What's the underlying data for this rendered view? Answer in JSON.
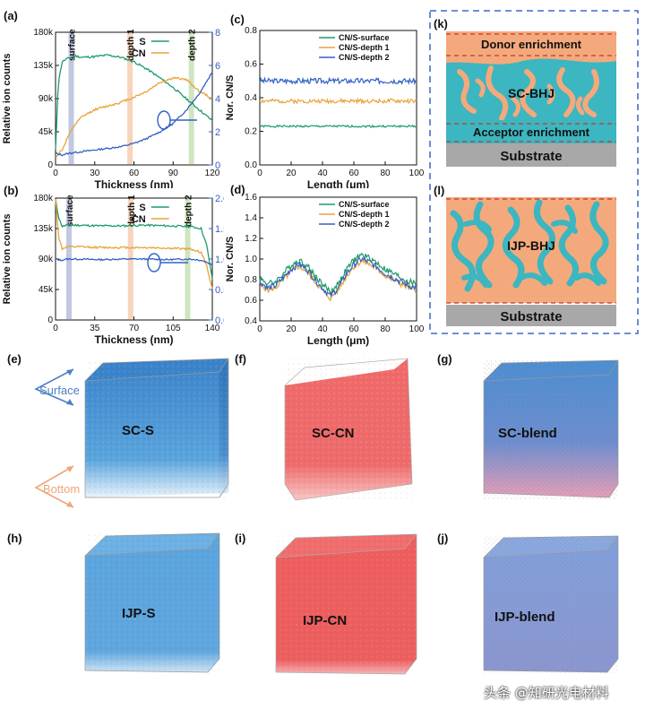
{
  "chart_data": [
    {
      "panel": "(a)",
      "type": "line",
      "xlabel": "Thickness (nm)",
      "ylabel": "Relative ion counts",
      "y2label": "Nor. CN/S",
      "xlim": [
        0,
        120
      ],
      "ylim": [
        0,
        180000
      ],
      "y2lim": [
        0,
        8
      ],
      "xticks": [
        "0",
        "30",
        "60",
        "90",
        "120"
      ],
      "yticks": [
        "0",
        "45k",
        "90k",
        "135k",
        "180k"
      ],
      "y2ticks": [
        "0",
        "2",
        "4",
        "6",
        "8"
      ],
      "legend": [
        "S",
        "CN"
      ],
      "markers": [
        {
          "label": "surface",
          "x": 12,
          "color": "#b6bedd"
        },
        {
          "label": "depth 1",
          "x": 57,
          "color": "#f6cdb2"
        },
        {
          "label": "depth 2",
          "x": 104,
          "color": "#c7e0b4"
        }
      ],
      "series": [
        {
          "name": "S",
          "color": "#1e9a6a",
          "axis": "left",
          "x": [
            0,
            2,
            5,
            10,
            15,
            20,
            30,
            40,
            50,
            60,
            70,
            80,
            90,
            100,
            110,
            120
          ],
          "y": [
            20000,
            110000,
            140000,
            145000,
            148000,
            146000,
            147000,
            149000,
            146000,
            140000,
            130000,
            118000,
            105000,
            90000,
            75000,
            60000
          ]
        },
        {
          "name": "CN",
          "color": "#e8a33a",
          "axis": "left",
          "x": [
            0,
            2,
            5,
            10,
            15,
            20,
            30,
            40,
            50,
            60,
            70,
            80,
            90,
            100,
            110,
            120
          ],
          "y": [
            10000,
            15000,
            20000,
            40000,
            55000,
            65000,
            75000,
            80000,
            85000,
            92000,
            100000,
            112000,
            118000,
            116000,
            100000,
            90000
          ]
        },
        {
          "name": "Nor. CN/S",
          "color": "#3061c4",
          "axis": "right",
          "x": [
            0,
            5,
            10,
            20,
            30,
            40,
            50,
            60,
            70,
            80,
            90,
            100,
            110,
            120
          ],
          "y": [
            0.7,
            0.6,
            0.7,
            0.8,
            0.9,
            1.0,
            1.1,
            1.3,
            1.6,
            2.0,
            2.5,
            3.3,
            4.3,
            5.6
          ]
        }
      ]
    },
    {
      "panel": "(b)",
      "type": "line",
      "xlabel": "Thickness (nm)",
      "ylabel": "Relative ion counts",
      "y2label": "Nor. CN/S",
      "xlim": [
        0,
        140
      ],
      "ylim": [
        0,
        180000
      ],
      "y2lim": [
        0,
        2.0
      ],
      "xticks": [
        "0",
        "35",
        "70",
        "105",
        "140"
      ],
      "yticks": [
        "0",
        "45k",
        "90k",
        "135k",
        "180k"
      ],
      "y2ticks": [
        "0.0",
        "0.5",
        "1.0",
        "1.5",
        "2.0"
      ],
      "legend": [
        "S",
        "CN"
      ],
      "markers": [
        {
          "label": "surface",
          "x": 12,
          "color": "#b6bedd"
        },
        {
          "label": "depth 1",
          "x": 67,
          "color": "#f6cdb2"
        },
        {
          "label": "depth 2",
          "x": 118,
          "color": "#c7e0b4"
        }
      ],
      "series": [
        {
          "name": "S",
          "color": "#1e9a6a",
          "axis": "left",
          "x": [
            0,
            3,
            6,
            10,
            20,
            40,
            60,
            80,
            100,
            120,
            130,
            135,
            140
          ],
          "y": [
            178000,
            150000,
            138000,
            140000,
            140000,
            139000,
            139000,
            140000,
            139000,
            138000,
            135000,
            110000,
            60000
          ]
        },
        {
          "name": "CN",
          "color": "#e8a33a",
          "axis": "left",
          "x": [
            0,
            3,
            6,
            10,
            20,
            40,
            60,
            80,
            100,
            120,
            130,
            135,
            140
          ],
          "y": [
            178000,
            120000,
            105000,
            108000,
            108000,
            107000,
            107000,
            107000,
            106000,
            105000,
            100000,
            80000,
            45000
          ]
        },
        {
          "name": "Nor. CN/S",
          "color": "#3061c4",
          "axis": "right",
          "x": [
            0,
            5,
            10,
            20,
            40,
            60,
            80,
            100,
            120,
            130,
            135,
            140
          ],
          "y": [
            1.0,
            0.98,
            1.0,
            1.0,
            0.99,
            1.0,
            1.0,
            0.99,
            1.0,
            0.98,
            0.95,
            0.9
          ]
        }
      ]
    },
    {
      "panel": "(c)",
      "type": "line",
      "xlabel": "Length (μm)",
      "ylabel": "Nor. CN/S",
      "xlim": [
        0,
        100
      ],
      "ylim": [
        0,
        0.8
      ],
      "xticks": [
        "0",
        "20",
        "40",
        "60",
        "80",
        "100"
      ],
      "yticks": [
        "0.0",
        "0.2",
        "0.4",
        "0.6",
        "0.8"
      ],
      "legend": [
        "CN/S-surface",
        "CN/S-depth 1",
        "CN/S-depth 2"
      ],
      "series": [
        {
          "name": "CN/S-surface",
          "color": "#1e9a6a",
          "level": 0.23,
          "noise": 0.006,
          "seed": 1
        },
        {
          "name": "CN/S-depth 1",
          "color": "#e8a33a",
          "level": 0.38,
          "noise": 0.012,
          "seed": 2
        },
        {
          "name": "CN/S-depth 2",
          "color": "#3061c4",
          "level": 0.5,
          "noise": 0.016,
          "seed": 3
        }
      ]
    },
    {
      "panel": "(d)",
      "type": "line",
      "xlabel": "Length (μm)",
      "ylabel": "Nor. CN/S",
      "xlim": [
        0,
        100
      ],
      "ylim": [
        0.4,
        1.6
      ],
      "xticks": [
        "0",
        "20",
        "40",
        "60",
        "80",
        "100"
      ],
      "yticks": [
        "0.4",
        "0.6",
        "0.8",
        "1.0",
        "1.2",
        "1.4",
        "1.6"
      ],
      "legend": [
        "CN/S-surface",
        "CN/S-depth 1",
        "CN/S-depth 2"
      ],
      "series": [
        {
          "name": "CN/S-surface",
          "color": "#1e9a6a",
          "offset": 0.04,
          "seed": 4
        },
        {
          "name": "CN/S-depth 1",
          "color": "#e8a33a",
          "offset": -0.02,
          "seed": 5
        },
        {
          "name": "CN/S-depth 2",
          "color": "#3061c4",
          "offset": 0.0,
          "seed": 6
        }
      ],
      "trend_x": [
        0,
        5,
        10,
        20,
        25,
        30,
        38,
        45,
        50,
        55,
        60,
        65,
        70,
        75,
        80,
        85,
        90,
        95,
        100
      ],
      "trend_y": [
        0.78,
        0.72,
        0.74,
        0.9,
        0.95,
        0.9,
        0.75,
        0.64,
        0.72,
        0.85,
        0.95,
        1.0,
        0.97,
        0.92,
        0.86,
        0.82,
        0.78,
        0.74,
        0.72
      ]
    }
  ],
  "schematics": {
    "k": {
      "label": "(k)",
      "top": "Donor enrichment",
      "middle": "SC-BHJ",
      "bottom": "Acceptor enrichment",
      "substrate": "Substrate"
    },
    "l": {
      "label": "(l)",
      "middle": "IJP-BHJ",
      "substrate": "Substrate"
    }
  },
  "cubes": {
    "e": {
      "label": "(e)",
      "text": "SC-S"
    },
    "f": {
      "label": "(f)",
      "text": "SC-CN"
    },
    "g": {
      "label": "(g)",
      "text": "SC-blend"
    },
    "h": {
      "label": "(h)",
      "text": "IJP-S"
    },
    "i": {
      "label": "(i)",
      "text": "IJP-CN"
    },
    "j": {
      "label": "(j)",
      "text": "IJP-blend"
    }
  },
  "arrows": {
    "surface": "Surface",
    "bottom": "Bottom"
  },
  "colors": {
    "blue": "#4d95d6",
    "red": "#e25858",
    "orange": "#f4a97c",
    "teal": "#3cb6c0",
    "substrate": "#a8a8a8"
  },
  "watermark": "头条 @知研光电材料"
}
